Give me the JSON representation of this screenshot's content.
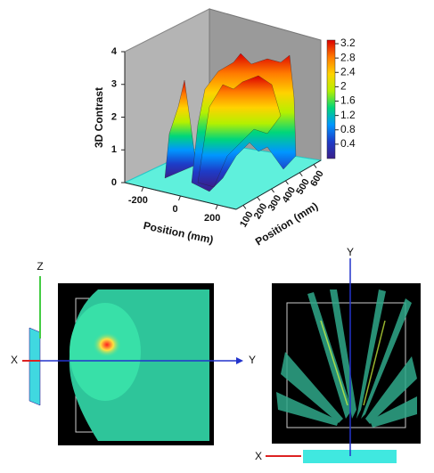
{
  "chart_data": {
    "type": "surface3d",
    "zlabel": "3D Contrast",
    "xlabel": "Position (mm)",
    "ylabel": "Position (mm)",
    "xlim": [
      -300,
      300
    ],
    "xticks": [
      -200,
      0,
      200
    ],
    "ylim": [
      50,
      650
    ],
    "yticks": [
      100,
      200,
      300,
      400,
      500,
      600
    ],
    "zlim": [
      0,
      4
    ],
    "zticks": [
      0,
      1,
      2,
      3,
      4
    ],
    "clim": [
      0,
      3.3
    ],
    "cticks": [
      0.4,
      0.8,
      1.2,
      1.6,
      2,
      2.4,
      2.8,
      3.2
    ],
    "colormap": [
      "#3a1f8a",
      "#1d3cc8",
      "#0096ff",
      "#00d67a",
      "#b4f000",
      "#ffd200",
      "#ff7a00",
      "#dc0000"
    ]
  },
  "left_view": {
    "axes": [
      "Z",
      "X",
      "Y"
    ]
  },
  "right_view": {
    "axes": [
      "Y",
      "X"
    ]
  }
}
